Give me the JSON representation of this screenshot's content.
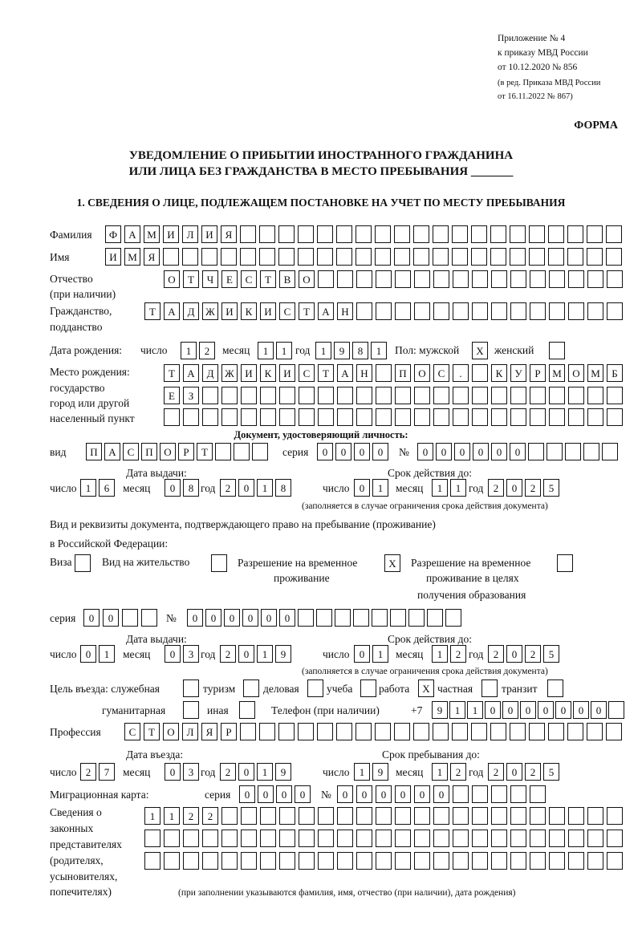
{
  "header": {
    "annex": "Приложение № 4",
    "order": "к приказу МВД России",
    "order_date": "от 10.12.2020 № 856",
    "revision1": "(в ред. Приказа МВД России",
    "revision2": "от 16.11.2022 № 867)",
    "form_label": "ФОРМА",
    "title1": "УВЕДОМЛЕНИЕ О ПРИБЫТИИ ИНОСТРАННОГО ГРАЖДАНИНА",
    "title2": "ИЛИ ЛИЦА БЕЗ ГРАЖДАНСТВА В МЕСТО ПРЕБЫВАНИЯ _______",
    "section1": "1. СВЕДЕНИЯ О ЛИЦЕ, ПОДЛЕЖАЩЕМ ПОСТАНОВКЕ НА УЧЕТ ПО МЕСТУ ПРЕБЫВАНИЯ"
  },
  "person": {
    "surname_label": "Фамилия",
    "surname": "ФАМИЛИЯ",
    "name_label": "Имя",
    "name": "ИМЯ",
    "patronymic_label1": "Отчество",
    "patronymic_label2": "(при наличии)",
    "patronymic": "ОТЧЕСТВО",
    "citizenship_label1": "Гражданство,",
    "citizenship_label2": "подданство",
    "citizenship": "ТАДЖИКИСТАН",
    "birth": {
      "label": "Дата рождения:",
      "day_label": "число",
      "day": "12",
      "month_label": "месяц",
      "month": "11",
      "year_label": "год",
      "year": "1981",
      "sex_label": "Пол: мужской",
      "male": "X",
      "female_label": "женский",
      "female": ""
    },
    "birthplace_label1": "Место рождения:",
    "birthplace_label2": "государство",
    "birthplace_label3": "город или другой",
    "birthplace_label4": "населенный пункт",
    "birthplace_line1": "ТАДЖИКИСТАН ПОС. КУРМОМБ",
    "birthplace_line2": "ЕЗ",
    "birthplace_line3": ""
  },
  "id_doc": {
    "heading": "Документ, удостоверяющий личность:",
    "type_label": "вид",
    "type": "ПАСПОРТ",
    "series_label": "серия",
    "series": "0000",
    "number_label": "№",
    "number": "000000",
    "issue_label": "Дата выдачи:",
    "valid_label": "Срок действия до:",
    "day_label": "число",
    "month_label": "месяц",
    "year_label": "год",
    "issue_day": "16",
    "issue_month": "08",
    "issue_year": "2018",
    "valid_day": "01",
    "valid_month": "11",
    "valid_year": "2025",
    "note": "(заполняется в случае ограничения срока действия документа)"
  },
  "permit": {
    "intro1": "Вид и реквизиты документа, подтверждающего право на пребывание (проживание)",
    "intro2": "в Российской Федерации:",
    "visa_label": "Виза",
    "visa": "",
    "residence_label": "Вид на жительство",
    "residence": "",
    "temp_label1": "Разрешение на временное",
    "temp_label2": "проживание",
    "temp": "X",
    "edu_label1": "Разрешение на временное",
    "edu_label2": "проживание в целях",
    "edu_label3": "получения образования",
    "edu": "",
    "series_label": "серия",
    "series": "00",
    "number_label": "№",
    "number": "000000",
    "issue_label": "Дата выдачи:",
    "valid_label": "Срок действия до:",
    "day_label": "число",
    "month_label": "месяц",
    "year_label": "год",
    "issue_day": "01",
    "issue_month": "03",
    "issue_year": "2019",
    "valid_day": "01",
    "valid_month": "12",
    "valid_year": "2025",
    "note": "(заполняется в случае ограничения срока действия документа)"
  },
  "purpose": {
    "label": "Цель въезда: служебная",
    "service": "",
    "tourism_label": "туризм",
    "tourism": "",
    "business_label": "деловая",
    "business": "",
    "study_label": "учеба",
    "study": "",
    "work_label": "работа",
    "work": "X",
    "private_label": "частная",
    "private": "",
    "transit_label": "транзит",
    "transit": "",
    "humanitarian_label": "гуманитарная",
    "humanitarian": "",
    "other_label": "иная",
    "other": "",
    "phone_label": "Телефон (при наличии)",
    "phone_prefix": "+7",
    "phone": "9110000000"
  },
  "profession": {
    "label": "Профессия",
    "value": "СТОЛЯР"
  },
  "entry": {
    "entry_label": "Дата въезда:",
    "stay_label": "Срок пребывания до:",
    "day_label": "число",
    "month_label": "месяц",
    "year_label": "год",
    "entry_day": "27",
    "entry_month": "03",
    "entry_year": "2019",
    "stay_day": "19",
    "stay_month": "12",
    "stay_year": "2025"
  },
  "migration_card": {
    "label": "Миграционная карта:",
    "series_label": "серия",
    "series": "0000",
    "number_label": "№",
    "number": "000000"
  },
  "legal_reps": {
    "label1": "Сведения о",
    "label2": "законных",
    "label3": "представителях",
    "label4": "(родителях,",
    "label5": "усыновителях,",
    "label6": "попечителях)",
    "line1": "1122",
    "line2": "",
    "line3": "",
    "note": "(при заполнении указываются фамилия, имя, отчество (при наличии), дата рождения)"
  }
}
